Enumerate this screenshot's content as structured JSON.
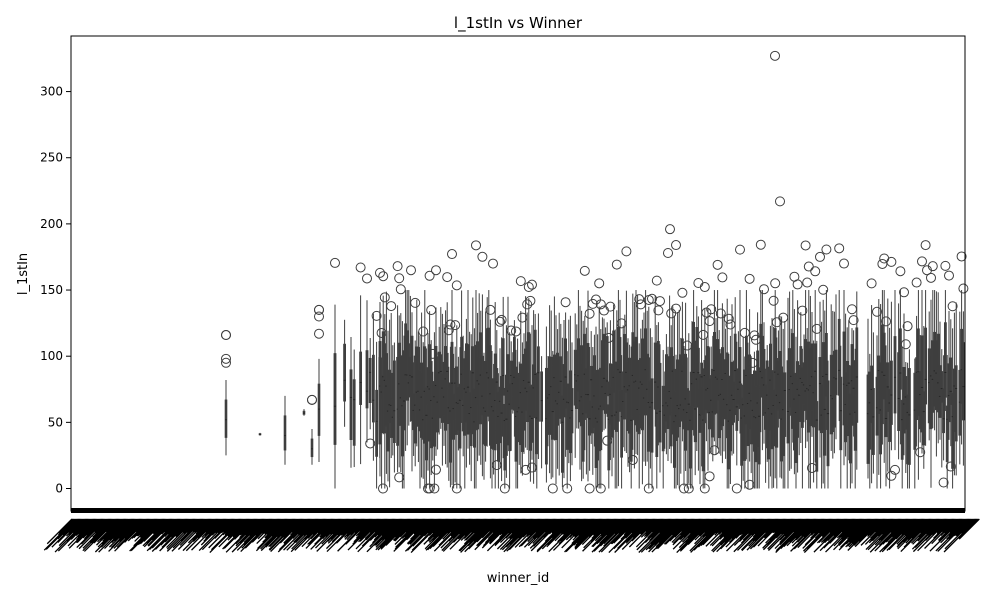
{
  "chart_data": {
    "type": "box",
    "title": "l_1stIn vs Winner",
    "xlabel": "winner_id",
    "ylabel": "l_1stIn",
    "ylim": [
      -17,
      342
    ],
    "yticks": [
      0,
      50,
      100,
      150,
      200,
      250,
      300
    ],
    "x_tick_labels": "dense, overlapping and illegible (one per winner_id category)",
    "grid": false,
    "legend": "none",
    "box_color": "#3f3f3f",
    "notable_outliers": [
      {
        "region": "late-middle",
        "value": 327
      },
      {
        "region": "late-middle",
        "value": 217
      },
      {
        "region": "middle",
        "value": 196
      },
      {
        "region": "middle",
        "value": 184
      },
      {
        "region": "middle",
        "value": 178
      },
      {
        "region": "early-middle",
        "value": 170
      },
      {
        "region": "early-middle",
        "value": 165
      },
      {
        "region": "right",
        "value": 165
      },
      {
        "region": "left",
        "value": 116
      },
      {
        "region": "left",
        "value": 135
      },
      {
        "region": "left",
        "value": 67
      },
      {
        "region": "middle",
        "value": 0
      }
    ]
  }
}
